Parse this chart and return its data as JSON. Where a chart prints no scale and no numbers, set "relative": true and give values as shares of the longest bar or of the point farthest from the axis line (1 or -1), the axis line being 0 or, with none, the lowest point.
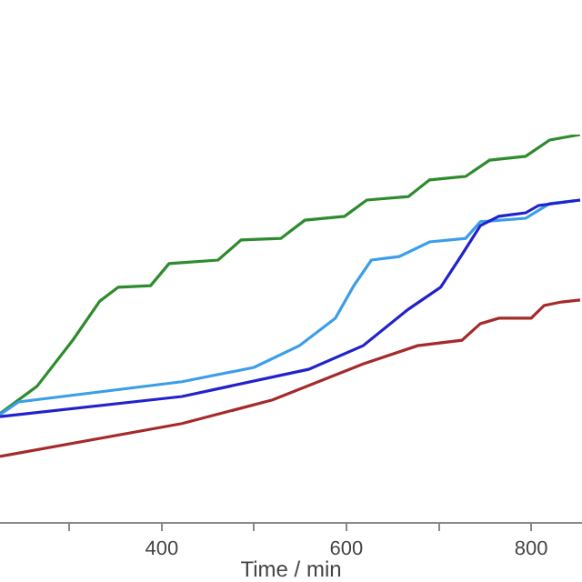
{
  "chart_data": {
    "type": "line",
    "xlabel": "Time / min",
    "relative": true,
    "xlim": [
      225,
      855
    ],
    "xticks": [
      {
        "value": 300,
        "label": null
      },
      400,
      {
        "value": 500,
        "label": null
      },
      600,
      {
        "value": 700,
        "label": null
      },
      800
    ],
    "series": [
      {
        "color": "#2e8b2e",
        "x": [
          225,
          265,
          304,
          333,
          353,
          388,
          408,
          461,
          486,
          529,
          555,
          598,
          622,
          667,
          690,
          729,
          755,
          794,
          820,
          853
        ],
        "values": [
          0.28,
          0.35,
          0.47,
          0.57,
          0.606,
          0.61,
          0.667,
          0.676,
          0.728,
          0.732,
          0.779,
          0.789,
          0.831,
          0.84,
          0.883,
          0.892,
          0.934,
          0.944,
          0.986,
          1
        ]
      },
      {
        "color": "#3a9ee8",
        "x": [
          225,
          245,
          422,
          500,
          549,
          588,
          608,
          627,
          657,
          690,
          729,
          745,
          794,
          820,
          853
        ],
        "values": [
          0.277,
          0.31,
          0.362,
          0.399,
          0.455,
          0.526,
          0.61,
          0.676,
          0.685,
          0.723,
          0.732,
          0.775,
          0.784,
          0.822,
          0.831
        ]
      },
      {
        "color": "#2222cc",
        "x": [
          225,
          422,
          559,
          618,
          667,
          702,
          725,
          745,
          765,
          794,
          808,
          853
        ],
        "values": [
          0.272,
          0.324,
          0.394,
          0.455,
          0.549,
          0.606,
          0.69,
          0.765,
          0.789,
          0.798,
          0.817,
          0.831
        ]
      },
      {
        "color": "#a52a2a",
        "x": [
          225,
          422,
          520,
          618,
          677,
          725,
          745,
          765,
          800,
          814,
          833,
          853
        ],
        "values": [
          0.169,
          0.254,
          0.315,
          0.408,
          0.455,
          0.469,
          0.512,
          0.526,
          0.526,
          0.559,
          0.568,
          0.573
        ]
      }
    ]
  }
}
